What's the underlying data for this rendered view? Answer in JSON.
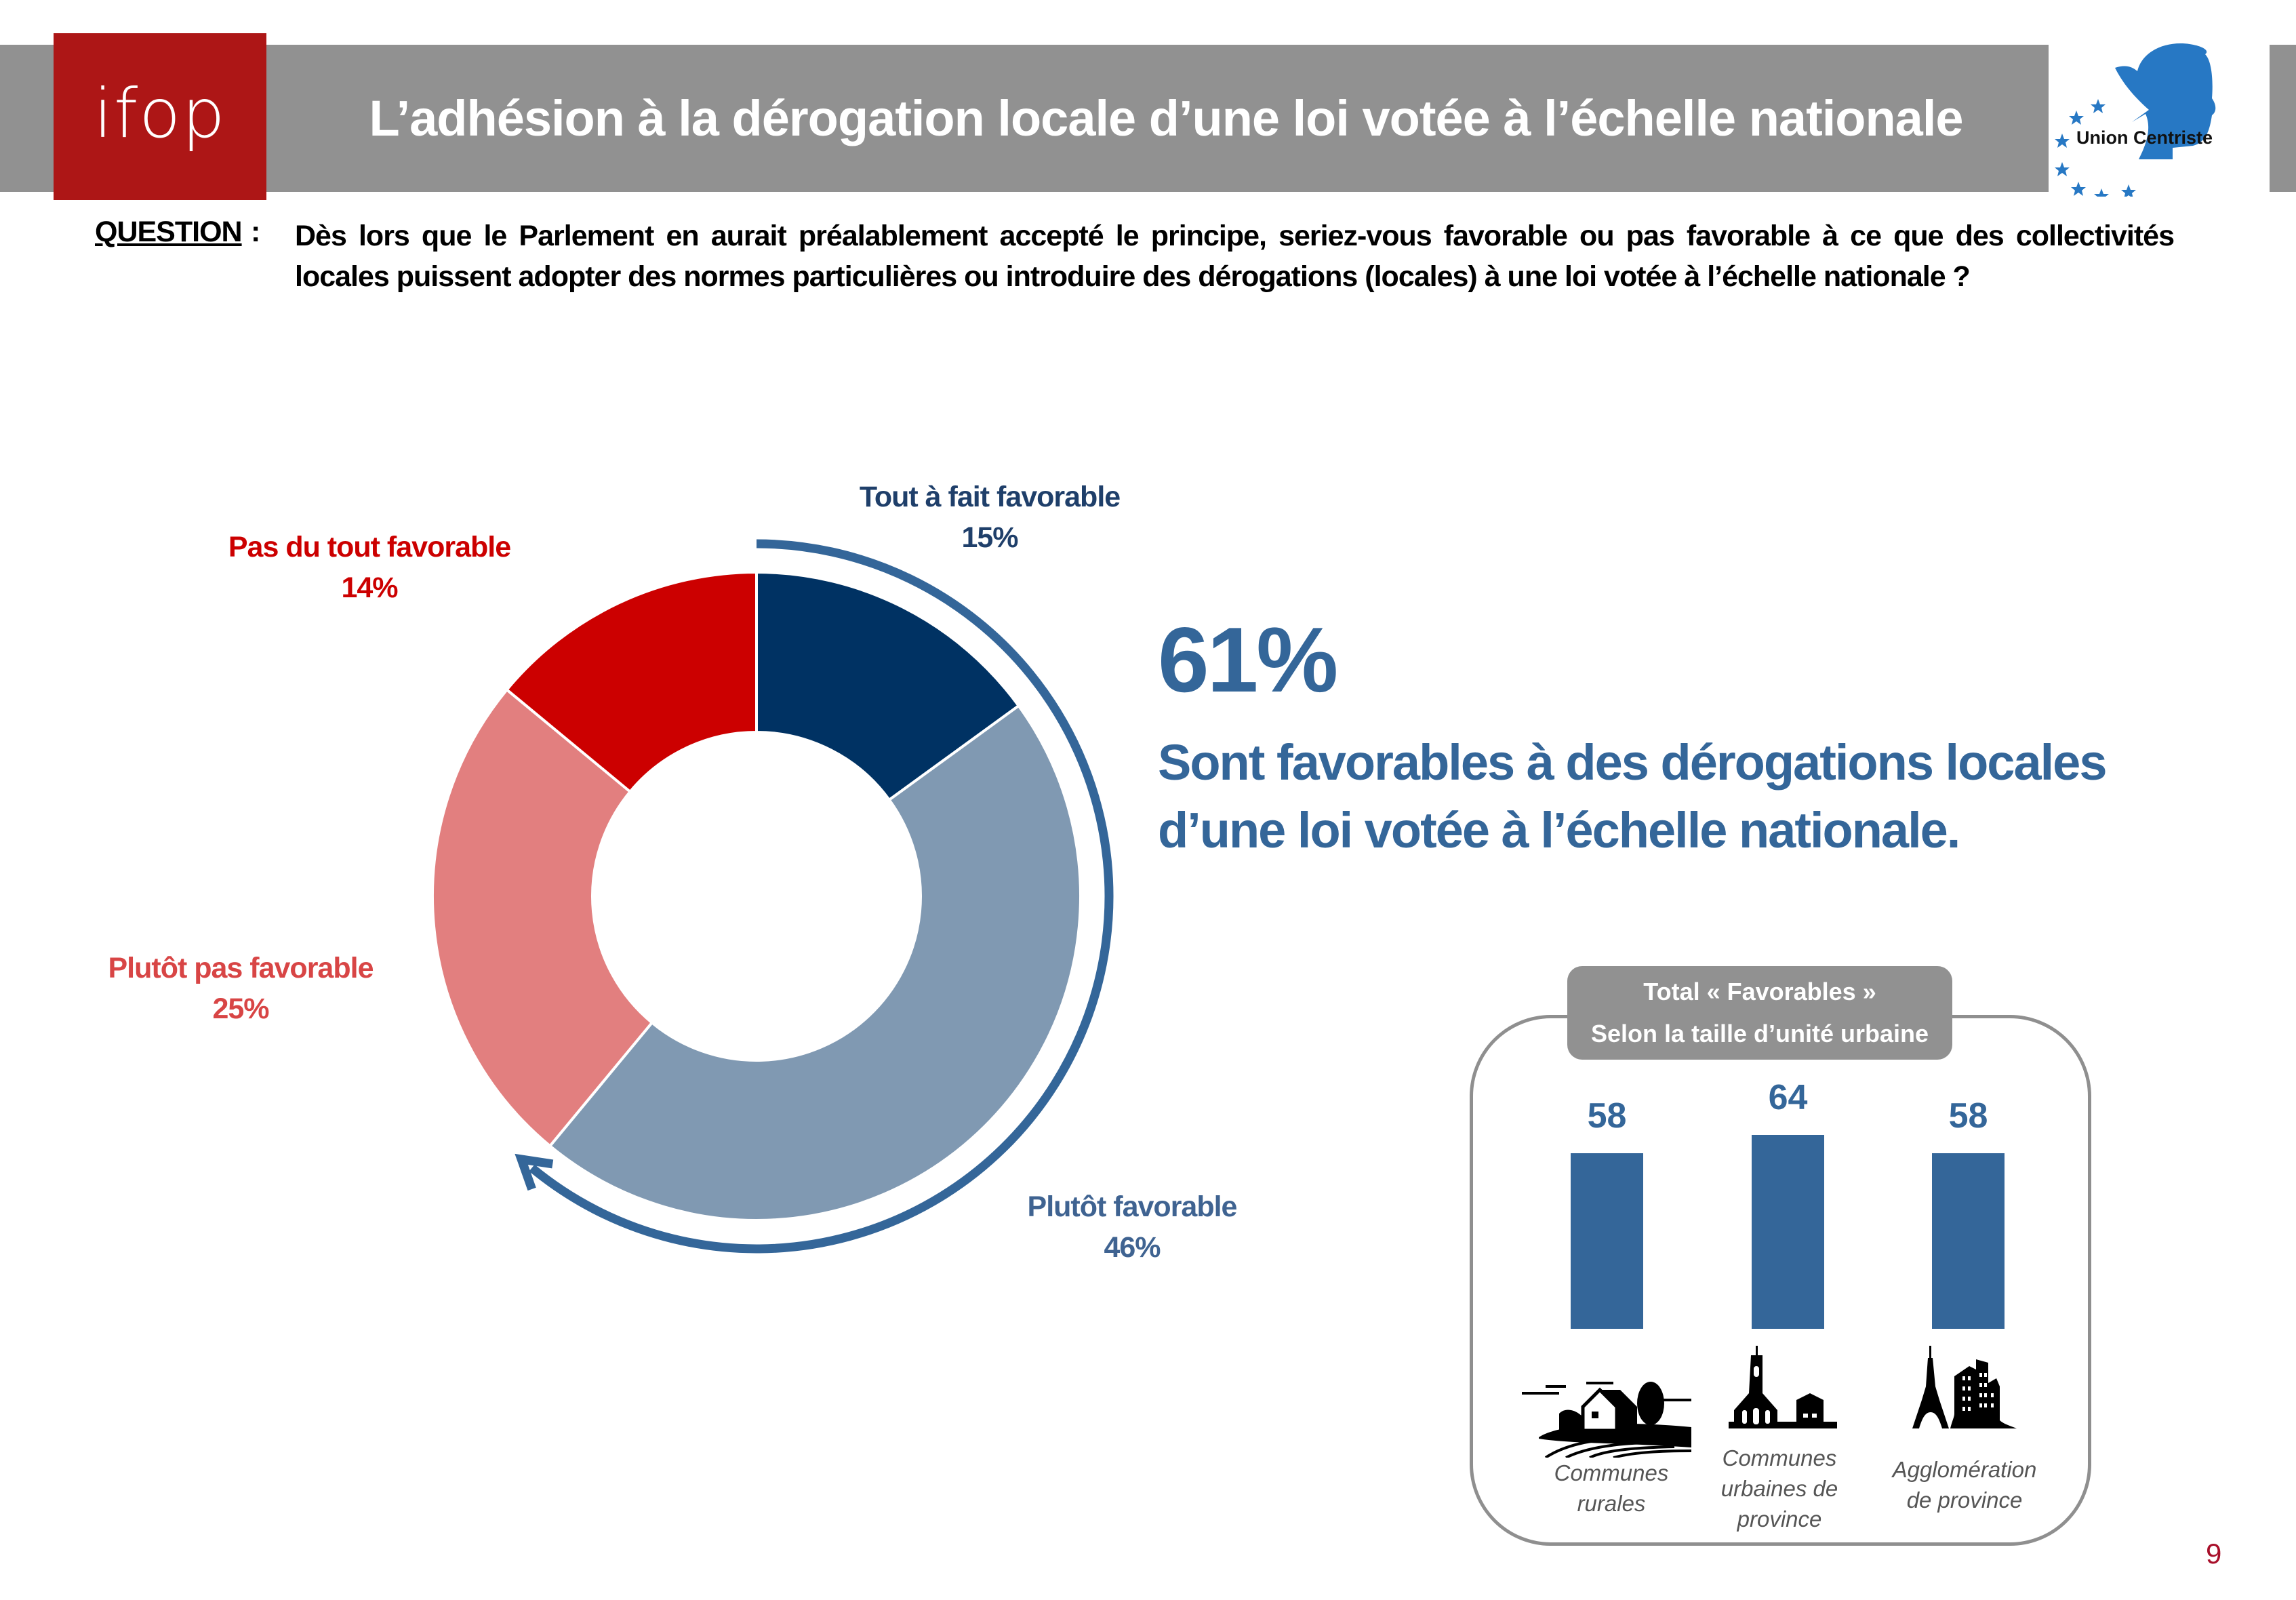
{
  "header": {
    "logo_text": "ifop",
    "title": "L’adhésion à la dérogation locale d’une loi votée à l’échelle nationale",
    "partner_logo_text": "Union Centriste"
  },
  "question": {
    "label": "QUESTION",
    "colon": ":",
    "text": "Dès lors que le Parlement en aurait préalablement accepté le principe, seriez-vous favorable ou pas favorable à ce que des collectivités locales puissent adopter des normes particulières ou introduire des dérogations (locales) à une loi votée à l’échelle nationale ?"
  },
  "summary": {
    "value": "61%",
    "line1": "Sont favorables à des dérogations locales",
    "line2": "d’une loi votée à l’échelle nationale."
  },
  "colors": {
    "tout_a_fait": "#003263",
    "plutot_favorable": "#8099b2",
    "plutot_pas": "#e27f7f",
    "pas_du_tout": "#cc0000",
    "accent_blue": "#346699",
    "ifop_red": "#ad1616",
    "gray": "#919191"
  },
  "chart_data": [
    {
      "type": "pie",
      "variant": "donut",
      "title": "",
      "start": "12 o'clock, clockwise",
      "categories": [
        "Tout à fait favorable",
        "Plutôt favorable",
        "Plutôt pas favorable",
        "Pas du tout favorable"
      ],
      "values": [
        15,
        46,
        25,
        14
      ],
      "labels": [
        "15%",
        "46%",
        "25%",
        "14%"
      ],
      "label_colors": [
        "#1f3f6a",
        "#3f6391",
        "#d84545",
        "#cc0000"
      ],
      "slice_colors": [
        "#003263",
        "#8099b2",
        "#e27f7f",
        "#cc0000"
      ],
      "annotation": "arrow spanning favourable segments (15% + 46% = 61%)"
    },
    {
      "type": "bar",
      "title": "Total « Favorables »",
      "subtitle": "Selon la taille d’unité urbaine",
      "categories": [
        "Communes rurales",
        "Communes urbaines de province",
        "Agglomération de province"
      ],
      "category_lines": [
        [
          "Communes",
          "rurales"
        ],
        [
          "Communes",
          "urbaines de",
          "province"
        ],
        [
          "Agglomération",
          "de province"
        ]
      ],
      "icons": [
        "farmhouse-icon",
        "church-icon",
        "eiffel-tower-icon"
      ],
      "values": [
        58,
        64,
        58
      ],
      "xlabel": "",
      "ylabel": "",
      "ylim": [
        0,
        100
      ],
      "grid": false,
      "bar_color": "#346699"
    }
  ],
  "footer": {
    "page_number": "9"
  }
}
